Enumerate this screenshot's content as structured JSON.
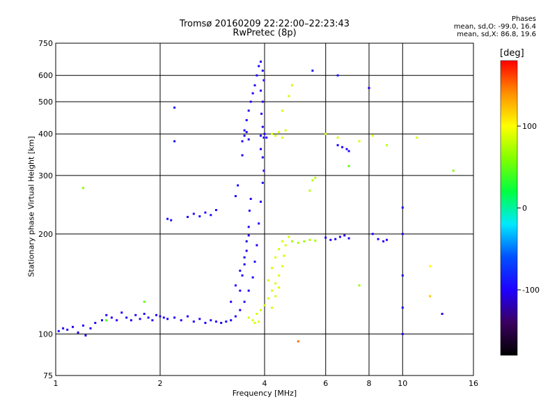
{
  "header": {
    "title_line1": "Tromsø 20160209 22:22:00–22:23:43",
    "title_line2": "RwPretec (8p)"
  },
  "stats": {
    "heading": "Phases",
    "line1": "mean, sd,O: -99.0, 16.4",
    "line2": "mean, sd,X:  86.8, 19.6"
  },
  "colorbar": {
    "unit": "[deg]",
    "range": [
      -180,
      180
    ],
    "ticks": [
      100,
      0,
      -100
    ],
    "colormap": [
      "#000000",
      "#3b0060",
      "#1e00ff",
      "#0050ff",
      "#00e8ff",
      "#00ff40",
      "#80ff00",
      "#ffff00",
      "#ff9000",
      "#ff0000"
    ]
  },
  "chart_data": {
    "type": "scatter",
    "title": "Tromsø 20160209 22:22:00–22:23:43",
    "subtitle": "RwPretec (8p)",
    "xlabel": "Frequency [MHz]",
    "ylabel": "Stationary phase Virtual Height [km]",
    "x_scale": "log",
    "y_scale": "log",
    "xlim": [
      1,
      16
    ],
    "ylim": [
      75,
      750
    ],
    "x_ticks": [
      1,
      2,
      4,
      6,
      8,
      10,
      16
    ],
    "y_ticks": [
      75,
      100,
      200,
      300,
      400,
      500,
      600,
      750
    ],
    "grid": true,
    "color_variable": "phase [deg]",
    "series": [
      {
        "points": [
          [
            1.02,
            102,
            -99
          ],
          [
            1.05,
            104,
            -99
          ],
          [
            1.08,
            103,
            -98
          ],
          [
            1.12,
            105,
            -100
          ],
          [
            1.16,
            101,
            -102
          ],
          [
            1.2,
            106,
            -97
          ],
          [
            1.22,
            99,
            -101
          ],
          [
            1.26,
            104,
            -99
          ],
          [
            1.3,
            108,
            -98
          ],
          [
            1.36,
            110,
            -100
          ],
          [
            1.4,
            114,
            -99
          ],
          [
            1.45,
            112,
            -101
          ],
          [
            1.5,
            110,
            -97
          ],
          [
            1.55,
            116,
            -100
          ],
          [
            1.6,
            112,
            -99
          ],
          [
            1.65,
            110,
            -102
          ],
          [
            1.7,
            114,
            -98
          ],
          [
            1.75,
            111,
            -99
          ],
          [
            1.8,
            115,
            -100
          ],
          [
            1.85,
            112,
            -97
          ],
          [
            1.9,
            110,
            -101
          ],
          [
            1.95,
            114,
            -99
          ],
          [
            2.0,
            113,
            -98
          ],
          [
            2.05,
            112,
            -100
          ],
          [
            2.1,
            111,
            -99
          ],
          [
            2.2,
            112,
            -102
          ],
          [
            2.3,
            110,
            -99
          ],
          [
            2.4,
            113,
            -97
          ],
          [
            2.5,
            109,
            -100
          ],
          [
            2.6,
            111,
            -99
          ],
          [
            2.7,
            108,
            -101
          ],
          [
            2.8,
            110,
            -98
          ],
          [
            2.9,
            109,
            -99
          ],
          [
            3.0,
            108,
            -100
          ],
          [
            3.1,
            109,
            -102
          ],
          [
            3.2,
            110,
            -99
          ],
          [
            3.3,
            113,
            -97
          ],
          [
            3.4,
            118,
            -100
          ],
          [
            3.5,
            125,
            -99
          ],
          [
            3.6,
            135,
            -101
          ],
          [
            3.7,
            148,
            -98
          ],
          [
            3.75,
            165,
            -99
          ],
          [
            3.8,
            185,
            -100
          ],
          [
            3.85,
            215,
            -99
          ],
          [
            3.9,
            250,
            -102
          ],
          [
            3.95,
            285,
            -97
          ],
          [
            3.98,
            310,
            -100
          ],
          [
            3.2,
            125,
            -99
          ],
          [
            3.3,
            140,
            -98
          ],
          [
            3.4,
            155,
            -101
          ],
          [
            3.5,
            170,
            -99
          ],
          [
            3.55,
            190,
            -100
          ],
          [
            3.6,
            210,
            -97
          ],
          [
            3.62,
            235,
            -99
          ],
          [
            3.65,
            255,
            -102
          ],
          [
            3.4,
            135,
            -99
          ],
          [
            3.45,
            150,
            -98
          ],
          [
            3.5,
            162,
            -100
          ],
          [
            3.55,
            178,
            -99
          ],
          [
            3.6,
            198,
            -101
          ],
          [
            2.1,
            222,
            -95
          ],
          [
            2.15,
            220,
            -94
          ],
          [
            2.4,
            225,
            -96
          ],
          [
            2.5,
            230,
            -97
          ],
          [
            2.6,
            226,
            -95
          ],
          [
            2.7,
            232,
            -96
          ],
          [
            2.8,
            228,
            -94
          ],
          [
            2.9,
            236,
            -95
          ],
          [
            3.3,
            260,
            -96
          ],
          [
            3.35,
            280,
            -95
          ],
          [
            3.45,
            345,
            -99
          ],
          [
            3.45,
            380,
            -100
          ],
          [
            3.5,
            410,
            -98
          ],
          [
            3.55,
            440,
            -99
          ],
          [
            3.6,
            470,
            -101
          ],
          [
            3.65,
            500,
            -99
          ],
          [
            3.7,
            530,
            -100
          ],
          [
            3.75,
            560,
            -98
          ],
          [
            3.8,
            600,
            -99
          ],
          [
            3.85,
            640,
            -100
          ],
          [
            3.9,
            660,
            -102
          ],
          [
            3.95,
            620,
            -99
          ],
          [
            3.98,
            580,
            -97
          ],
          [
            3.9,
            540,
            -100
          ],
          [
            3.95,
            500,
            -99
          ],
          [
            3.92,
            460,
            -101
          ],
          [
            3.95,
            420,
            -98
          ],
          [
            3.98,
            390,
            -99
          ],
          [
            3.9,
            360,
            -100
          ],
          [
            3.95,
            340,
            -99
          ],
          [
            3.5,
            395,
            -98
          ],
          [
            3.55,
            405,
            -101
          ],
          [
            3.6,
            385,
            -99
          ],
          [
            3.9,
            395,
            -100
          ],
          [
            4.0,
            400,
            -98
          ],
          [
            4.05,
            390,
            -99
          ],
          [
            3.6,
            112,
            87
          ],
          [
            3.7,
            110,
            88
          ],
          [
            3.8,
            115,
            86
          ],
          [
            3.9,
            118,
            87
          ],
          [
            4.0,
            122,
            85
          ],
          [
            4.1,
            128,
            88
          ],
          [
            4.2,
            135,
            87
          ],
          [
            4.3,
            142,
            86
          ],
          [
            4.4,
            150,
            87
          ],
          [
            4.5,
            160,
            88
          ],
          [
            4.55,
            172,
            86
          ],
          [
            4.6,
            185,
            87
          ],
          [
            4.7,
            196,
            85
          ],
          [
            4.3,
            130,
            87
          ],
          [
            4.4,
            138,
            88
          ],
          [
            4.2,
            120,
            86
          ],
          [
            3.75,
            108,
            87
          ],
          [
            3.85,
            109,
            88
          ],
          [
            4.1,
            145,
            86
          ],
          [
            4.2,
            158,
            87
          ],
          [
            4.3,
            170,
            88
          ],
          [
            4.4,
            180,
            86
          ],
          [
            4.5,
            190,
            87
          ],
          [
            4.8,
            190,
            70
          ],
          [
            5.0,
            188,
            72
          ],
          [
            5.2,
            190,
            71
          ],
          [
            5.4,
            192,
            73
          ],
          [
            5.6,
            191,
            71
          ],
          [
            4.2,
            400,
            88
          ],
          [
            4.3,
            395,
            86
          ],
          [
            4.4,
            405,
            87
          ],
          [
            4.5,
            390,
            88
          ],
          [
            4.6,
            410,
            86
          ],
          [
            4.5,
            470,
            87
          ],
          [
            4.7,
            520,
            86
          ],
          [
            4.8,
            560,
            85
          ],
          [
            5.5,
            290,
            78
          ],
          [
            5.6,
            295,
            77
          ],
          [
            5.4,
            270,
            79
          ],
          [
            6.0,
            195,
            -99
          ],
          [
            6.2,
            192,
            -100
          ],
          [
            6.4,
            193,
            -98
          ],
          [
            6.6,
            196,
            -99
          ],
          [
            6.8,
            198,
            -100
          ],
          [
            7.0,
            194,
            -101
          ],
          [
            6.5,
            370,
            -100
          ],
          [
            6.7,
            365,
            -99
          ],
          [
            6.9,
            360,
            -101
          ],
          [
            7.0,
            355,
            -98
          ],
          [
            8.2,
            200,
            -99
          ],
          [
            8.5,
            193,
            -100
          ],
          [
            8.8,
            190,
            -98
          ],
          [
            9.0,
            192,
            -99
          ],
          [
            10.0,
            120,
            -99
          ],
          [
            10.0,
            150,
            -100
          ],
          [
            10.0,
            200,
            -98
          ],
          [
            10.0,
            240,
            -99
          ],
          [
            10.0,
            100,
            -101
          ],
          [
            6.0,
            400,
            90
          ],
          [
            6.5,
            390,
            85
          ],
          [
            7.5,
            380,
            88
          ],
          [
            8.2,
            395,
            92
          ],
          [
            9.0,
            370,
            80
          ],
          [
            11.0,
            390,
            86
          ],
          [
            14.0,
            310,
            60
          ],
          [
            12.0,
            130,
            120
          ],
          [
            7.5,
            140,
            70
          ],
          [
            12.0,
            160,
            100
          ],
          [
            13.0,
            115,
            -110
          ],
          [
            1.4,
            110,
            40
          ],
          [
            1.8,
            125,
            50
          ],
          [
            1.2,
            275,
            60
          ],
          [
            2.2,
            480,
            -90
          ],
          [
            2.2,
            380,
            -95
          ],
          [
            5.0,
            95,
            150
          ],
          [
            8.0,
            550,
            -100
          ],
          [
            7.0,
            320,
            50
          ],
          [
            5.5,
            620,
            -95
          ],
          [
            6.5,
            600,
            -92
          ]
        ]
      }
    ]
  }
}
